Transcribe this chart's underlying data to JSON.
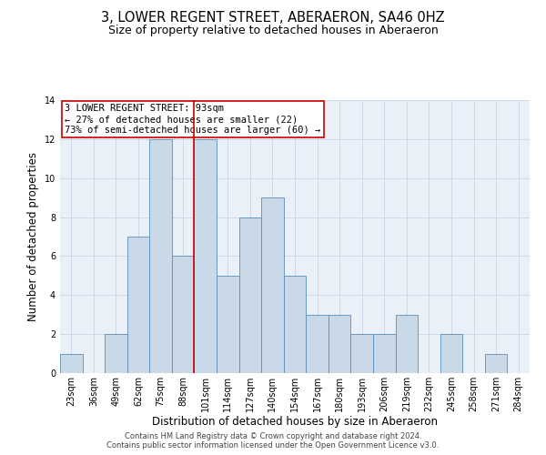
{
  "title": "3, LOWER REGENT STREET, ABERAERON, SA46 0HZ",
  "subtitle": "Size of property relative to detached houses in Aberaeron",
  "xlabel": "Distribution of detached houses by size in Aberaeron",
  "ylabel": "Number of detached properties",
  "categories": [
    "23sqm",
    "36sqm",
    "49sqm",
    "62sqm",
    "75sqm",
    "88sqm",
    "101sqm",
    "114sqm",
    "127sqm",
    "140sqm",
    "154sqm",
    "167sqm",
    "180sqm",
    "193sqm",
    "206sqm",
    "219sqm",
    "232sqm",
    "245sqm",
    "258sqm",
    "271sqm",
    "284sqm"
  ],
  "values": [
    1,
    0,
    2,
    7,
    12,
    6,
    12,
    5,
    8,
    9,
    5,
    3,
    3,
    2,
    2,
    3,
    0,
    2,
    0,
    1,
    0
  ],
  "bar_color": "#c9d9e8",
  "bar_edge_color": "#5b8db8",
  "grid_color": "#d0d8e8",
  "background_color": "#eaf0f8",
  "annotation_text": "3 LOWER REGENT STREET: 93sqm\n← 27% of detached houses are smaller (22)\n73% of semi-detached houses are larger (60) →",
  "vline_x_index": 5.5,
  "vline_color": "#cc0000",
  "ylim": [
    0,
    14
  ],
  "yticks": [
    0,
    2,
    4,
    6,
    8,
    10,
    12,
    14
  ],
  "title_fontsize": 10.5,
  "subtitle_fontsize": 9,
  "ylabel_fontsize": 8.5,
  "xlabel_fontsize": 8.5,
  "tick_fontsize": 7,
  "annotation_fontsize": 7.5,
  "footer_fontsize": 6,
  "footer_line1": "Contains HM Land Registry data © Crown copyright and database right 2024.",
  "footer_line2": "Contains public sector information licensed under the Open Government Licence v3.0."
}
